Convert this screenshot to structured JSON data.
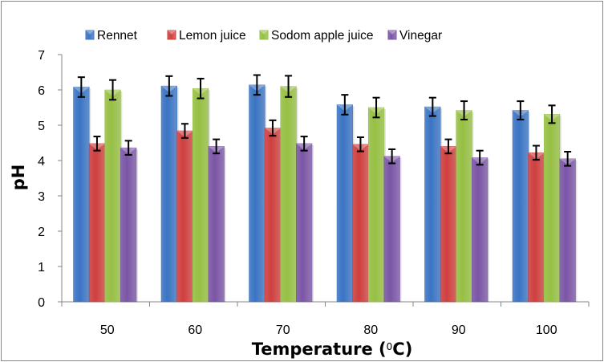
{
  "chart_data": {
    "type": "bar",
    "title": "",
    "xlabel": "Temperature (0C)",
    "xlabel_main": "Temperature (",
    "xlabel_sup": "0",
    "xlabel_end": "C)",
    "ylabel": "pH",
    "ylim": [
      0,
      7
    ],
    "yticks": [
      "0",
      "1",
      "2",
      "3",
      "4",
      "5",
      "6",
      "7"
    ],
    "grid": false,
    "legend_position": "top",
    "categories": [
      "50",
      "60",
      "70",
      "80",
      "90",
      "100"
    ],
    "series": [
      {
        "name": "Rennet",
        "color": "#3a74c4",
        "values": [
          6.08,
          6.11,
          6.14,
          5.58,
          5.52,
          5.42
        ],
        "errors": [
          0.28,
          0.28,
          0.28,
          0.28,
          0.26,
          0.26
        ]
      },
      {
        "name": "Lemon juice",
        "color": "#cf3f3e",
        "values": [
          4.48,
          4.84,
          4.92,
          4.46,
          4.4,
          4.22
        ],
        "errors": [
          0.2,
          0.2,
          0.22,
          0.2,
          0.2,
          0.2
        ]
      },
      {
        "name": "Sodom apple juice",
        "color": "#96c043",
        "values": [
          6.0,
          6.04,
          6.1,
          5.5,
          5.42,
          5.31
        ],
        "errors": [
          0.28,
          0.28,
          0.3,
          0.28,
          0.26,
          0.25
        ]
      },
      {
        "name": "Vinegar",
        "color": "#7b55a6",
        "values": [
          4.36,
          4.4,
          4.48,
          4.12,
          4.08,
          4.05
        ],
        "errors": [
          0.2,
          0.2,
          0.2,
          0.2,
          0.2,
          0.2
        ]
      }
    ]
  }
}
